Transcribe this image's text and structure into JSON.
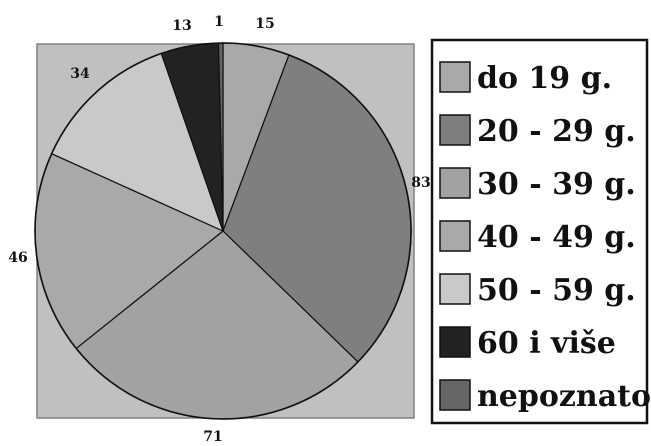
{
  "chart_data": {
    "type": "pie",
    "categories": [
      "do 19 g.",
      "20 - 29 g.",
      "30 - 39 g.",
      "40 - 49 g.",
      "50 - 59 g.",
      "60 i više",
      "nepoznato"
    ],
    "values": [
      15,
      83,
      71,
      46,
      34,
      13,
      1
    ],
    "value_labels": [
      "15",
      "83",
      "71",
      "46",
      "34",
      "13",
      "1"
    ],
    "colors": [
      "#a9a9a9",
      "#7f7f7f",
      "#a2a2a2",
      "#a9a9a9",
      "#c9c9c9",
      "#222222",
      "#666666"
    ],
    "start_angle": "top (12 o'clock)",
    "direction": "clockwise",
    "legend": {
      "placement": "right"
    },
    "background": "#c0c0c0"
  }
}
